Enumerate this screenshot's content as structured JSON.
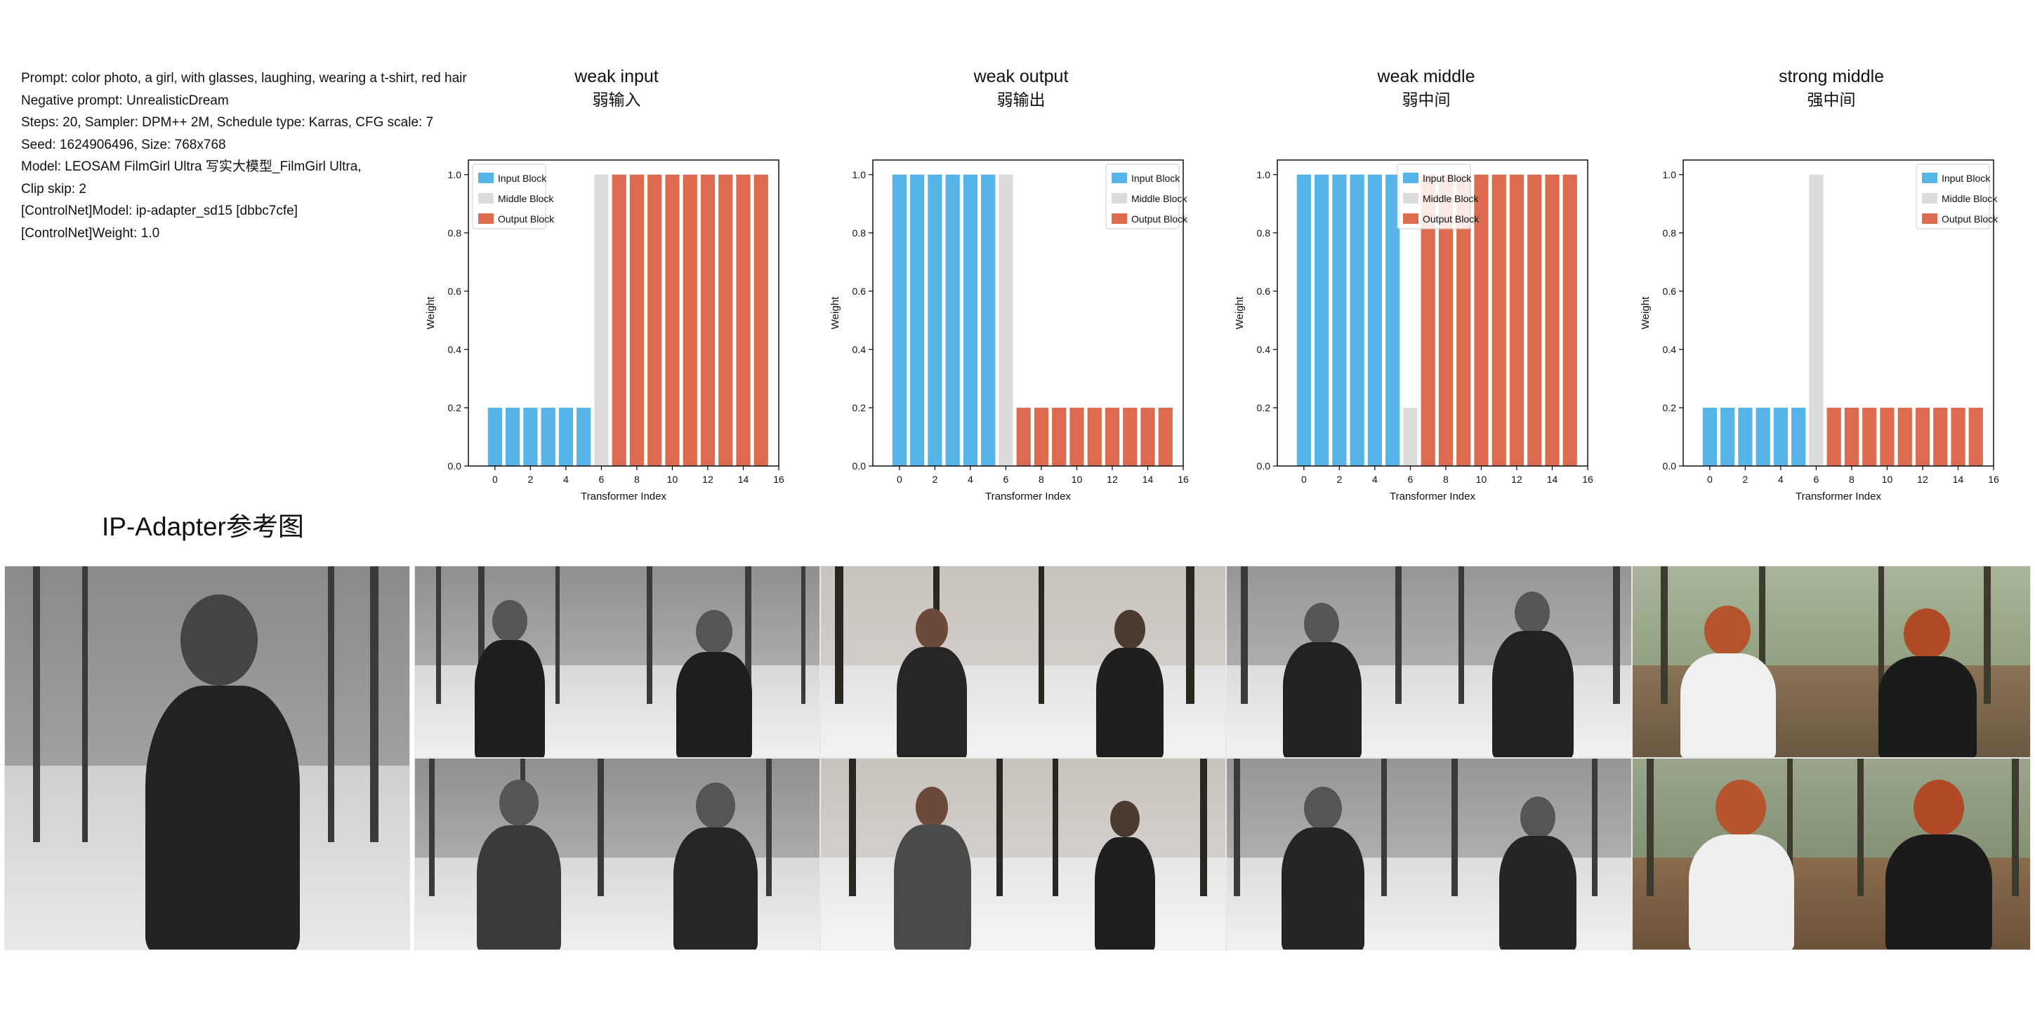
{
  "params": [
    "Prompt: color photo, a girl, with glasses, laughing, wearing a t-shirt, red hair",
    "Negative prompt: UnrealisticDream",
    "Steps: 20, Sampler: DPM++ 2M, Schedule type: Karras, CFG scale: 7",
    "Seed: 1624906496, Size: 768x768",
    "Model: LEOSAM FilmGirl Ultra 写实大模型_FilmGirl Ultra,",
    "Clip skip: 2",
    "[ControlNet]Model: ip-adapter_sd15 [dbbc7cfe]",
    "[ControlNet]Weight: 1.0"
  ],
  "reference_label": "IP-Adapter参考图",
  "colors": {
    "input": "#56B4E9",
    "middle": "#DCDCDC",
    "output": "#DD6B4F"
  },
  "chart_data": [
    {
      "type": "bar",
      "title": "weak input",
      "subtitle": "弱输入",
      "xlabel": "Transformer Index",
      "ylabel": "Weight",
      "xlim": [
        -1.5,
        16
      ],
      "ylim": [
        0,
        1.05
      ],
      "xticks": [
        0,
        2,
        4,
        6,
        8,
        10,
        12,
        14,
        16
      ],
      "yticks": [
        "0.0",
        "0.2",
        "0.4",
        "0.6",
        "0.8",
        "1.0"
      ],
      "legend_position": "top-left",
      "series": [
        {
          "name": "Input Block",
          "x": [
            0,
            1,
            2,
            3,
            4,
            5
          ],
          "values": [
            0.2,
            0.2,
            0.2,
            0.2,
            0.2,
            0.2
          ]
        },
        {
          "name": "Middle Block",
          "x": [
            6
          ],
          "values": [
            1.0
          ]
        },
        {
          "name": "Output Block",
          "x": [
            7,
            8,
            9,
            10,
            11,
            12,
            13,
            14,
            15
          ],
          "values": [
            1.0,
            1.0,
            1.0,
            1.0,
            1.0,
            1.0,
            1.0,
            1.0,
            1.0
          ]
        }
      ]
    },
    {
      "type": "bar",
      "title": "weak output",
      "subtitle": "弱输出",
      "xlabel": "Transformer Index",
      "ylabel": "Weight",
      "xlim": [
        -1.5,
        16
      ],
      "ylim": [
        0,
        1.05
      ],
      "xticks": [
        0,
        2,
        4,
        6,
        8,
        10,
        12,
        14,
        16
      ],
      "yticks": [
        "0.0",
        "0.2",
        "0.4",
        "0.6",
        "0.8",
        "1.0"
      ],
      "legend_position": "top-right",
      "series": [
        {
          "name": "Input Block",
          "x": [
            0,
            1,
            2,
            3,
            4,
            5
          ],
          "values": [
            1.0,
            1.0,
            1.0,
            1.0,
            1.0,
            1.0
          ]
        },
        {
          "name": "Middle Block",
          "x": [
            6
          ],
          "values": [
            1.0
          ]
        },
        {
          "name": "Output Block",
          "x": [
            7,
            8,
            9,
            10,
            11,
            12,
            13,
            14,
            15
          ],
          "values": [
            0.2,
            0.2,
            0.2,
            0.2,
            0.2,
            0.2,
            0.2,
            0.2,
            0.2
          ]
        }
      ]
    },
    {
      "type": "bar",
      "title": "weak middle",
      "subtitle": "弱中间",
      "xlabel": "Transformer Index",
      "ylabel": "Weight",
      "xlim": [
        -1.5,
        16
      ],
      "ylim": [
        0,
        1.05
      ],
      "xticks": [
        0,
        2,
        4,
        6,
        8,
        10,
        12,
        14,
        16
      ],
      "yticks": [
        "0.0",
        "0.2",
        "0.4",
        "0.6",
        "0.8",
        "1.0"
      ],
      "legend_position": "top-center",
      "series": [
        {
          "name": "Input Block",
          "x": [
            0,
            1,
            2,
            3,
            4,
            5
          ],
          "values": [
            1.0,
            1.0,
            1.0,
            1.0,
            1.0,
            1.0
          ]
        },
        {
          "name": "Middle Block",
          "x": [
            6
          ],
          "values": [
            0.2
          ]
        },
        {
          "name": "Output Block",
          "x": [
            7,
            8,
            9,
            10,
            11,
            12,
            13,
            14,
            15
          ],
          "values": [
            1.0,
            1.0,
            1.0,
            1.0,
            1.0,
            1.0,
            1.0,
            1.0,
            1.0
          ]
        }
      ]
    },
    {
      "type": "bar",
      "title": "strong middle",
      "subtitle": "强中间",
      "xlabel": "Transformer Index",
      "ylabel": "Weight",
      "xlim": [
        -1.5,
        16
      ],
      "ylim": [
        0,
        1.05
      ],
      "xticks": [
        0,
        2,
        4,
        6,
        8,
        10,
        12,
        14,
        16
      ],
      "yticks": [
        "0.0",
        "0.2",
        "0.4",
        "0.6",
        "0.8",
        "1.0"
      ],
      "legend_position": "top-right",
      "series": [
        {
          "name": "Input Block",
          "x": [
            0,
            1,
            2,
            3,
            4,
            5
          ],
          "values": [
            0.2,
            0.2,
            0.2,
            0.2,
            0.2,
            0.2
          ]
        },
        {
          "name": "Middle Block",
          "x": [
            6
          ],
          "values": [
            1.0
          ]
        },
        {
          "name": "Output Block",
          "x": [
            7,
            8,
            9,
            10,
            11,
            12,
            13,
            14,
            15
          ],
          "values": [
            0.2,
            0.2,
            0.2,
            0.2,
            0.2,
            0.2,
            0.2,
            0.2,
            0.2
          ]
        }
      ]
    }
  ]
}
